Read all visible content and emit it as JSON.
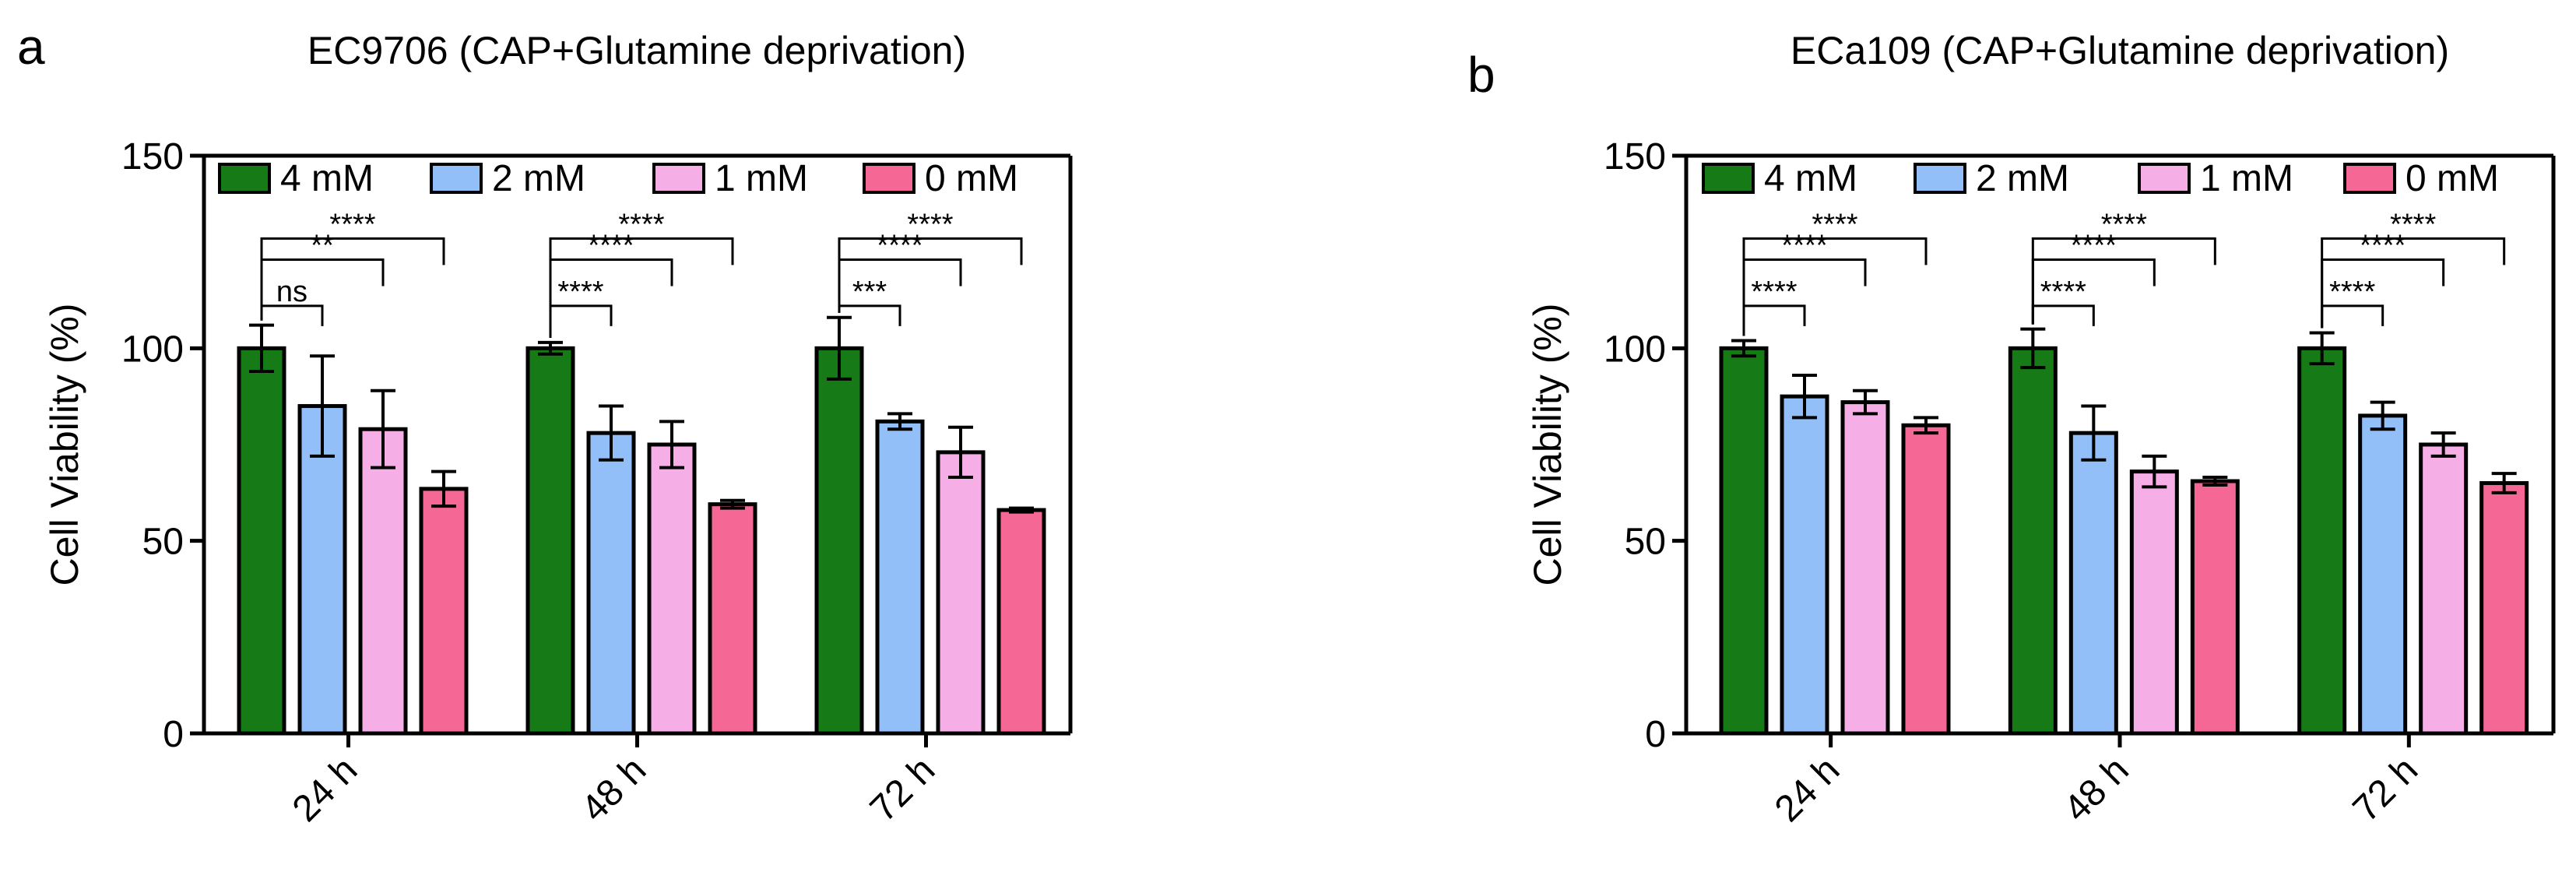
{
  "chart_data": [
    {
      "type": "bar",
      "panel": "a",
      "title": "EC9706 (CAP+Glutamine deprivation)",
      "xlabel": "",
      "ylabel": "Cell Viability (%)",
      "ylim": [
        0,
        150
      ],
      "yticks": [
        0,
        50,
        100,
        150
      ],
      "categories": [
        "24 h",
        "48 h",
        "72 h"
      ],
      "legend_position": "top",
      "series": [
        {
          "name": "4 mM",
          "color": "#167A16",
          "values": [
            100,
            100,
            100
          ],
          "errors": [
            6,
            1.5,
            8
          ]
        },
        {
          "name": "2 mM",
          "color": "#92BFF7",
          "values": [
            85,
            78,
            81
          ],
          "errors": [
            13,
            7,
            2
          ]
        },
        {
          "name": "1 mM",
          "color": "#F5AFE6",
          "values": [
            79,
            75,
            73
          ],
          "errors": [
            10,
            6,
            6.5
          ]
        },
        {
          "name": "0 mM",
          "color": "#F56896",
          "values": [
            63.5,
            59.5,
            58
          ],
          "errors": [
            4.5,
            1,
            0.5
          ]
        }
      ],
      "significance": [
        {
          "category": 0,
          "to_series": 1,
          "label": "ns"
        },
        {
          "category": 0,
          "to_series": 2,
          "label": "**"
        },
        {
          "category": 0,
          "to_series": 3,
          "label": "****"
        },
        {
          "category": 1,
          "to_series": 1,
          "label": "****"
        },
        {
          "category": 1,
          "to_series": 2,
          "label": "****"
        },
        {
          "category": 1,
          "to_series": 3,
          "label": "****"
        },
        {
          "category": 2,
          "to_series": 1,
          "label": "***"
        },
        {
          "category": 2,
          "to_series": 2,
          "label": "****"
        },
        {
          "category": 2,
          "to_series": 3,
          "label": "****"
        }
      ]
    },
    {
      "type": "bar",
      "panel": "b",
      "title": "ECa109 (CAP+Glutamine deprivation)",
      "xlabel": "",
      "ylabel": "Cell Viability (%)",
      "ylim": [
        0,
        150
      ],
      "yticks": [
        0,
        50,
        100,
        150
      ],
      "categories": [
        "24 h",
        "48 h",
        "72 h"
      ],
      "legend_position": "top",
      "series": [
        {
          "name": "4 mM",
          "color": "#167A16",
          "values": [
            100,
            100,
            100
          ],
          "errors": [
            2,
            5,
            4
          ]
        },
        {
          "name": "2 mM",
          "color": "#92BFF7",
          "values": [
            87.5,
            78,
            82.5
          ],
          "errors": [
            5.5,
            7,
            3.5
          ]
        },
        {
          "name": "1 mM",
          "color": "#F5AFE6",
          "values": [
            86,
            68,
            75
          ],
          "errors": [
            3,
            4,
            3
          ]
        },
        {
          "name": "0 mM",
          "color": "#F56896",
          "values": [
            80,
            65.5,
            65
          ],
          "errors": [
            2,
            1,
            2.5
          ]
        }
      ],
      "significance": [
        {
          "category": 0,
          "to_series": 1,
          "label": "****"
        },
        {
          "category": 0,
          "to_series": 2,
          "label": "****"
        },
        {
          "category": 0,
          "to_series": 3,
          "label": "****"
        },
        {
          "category": 1,
          "to_series": 1,
          "label": "****"
        },
        {
          "category": 1,
          "to_series": 2,
          "label": "****"
        },
        {
          "category": 1,
          "to_series": 3,
          "label": "****"
        },
        {
          "category": 2,
          "to_series": 1,
          "label": "****"
        },
        {
          "category": 2,
          "to_series": 2,
          "label": "****"
        },
        {
          "category": 2,
          "to_series": 3,
          "label": "****"
        }
      ]
    }
  ]
}
